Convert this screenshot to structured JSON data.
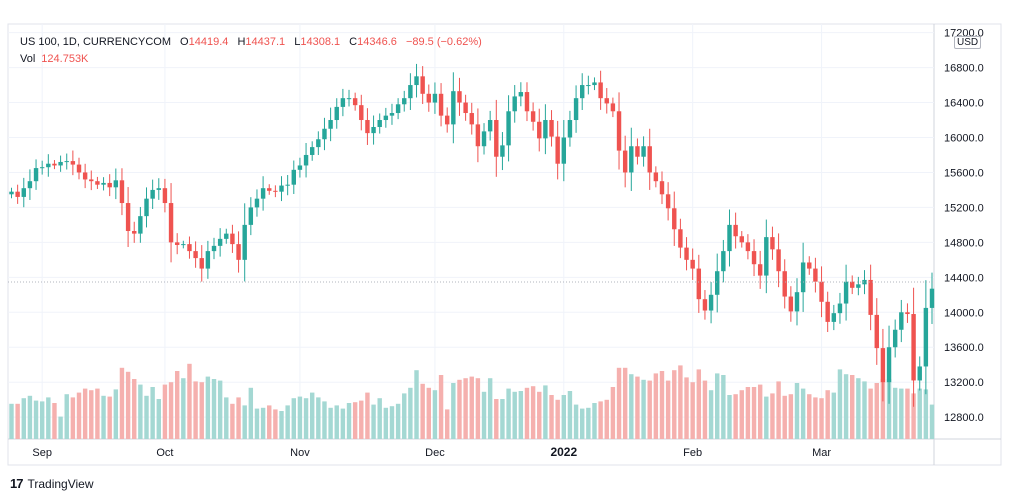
{
  "legend": {
    "symbol": "US 100, 1D, CURRENCYCOM",
    "o_label": "O",
    "open": "14419.4",
    "h_label": "H",
    "high": "14437.1",
    "l_label": "L",
    "low": "14308.1",
    "c_label": "C",
    "close": "14346.6",
    "change": "−89.5 (−0.62%)",
    "vol_label": "Vol",
    "vol_value": "124.753K"
  },
  "currency": "USD",
  "brand": {
    "name": "TradingView",
    "logo": "17"
  },
  "colors": {
    "up": "#26a69a",
    "down": "#ef5350",
    "vol_up": "#a4d8d3",
    "vol_down": "#f5b0ae"
  },
  "chart_data": {
    "type": "candlestick",
    "y_ticks": [
      "17200.0",
      "16800.0",
      "16400.0",
      "16000.0",
      "15600.0",
      "15200.0",
      "14800.0",
      "14400.0",
      "14000.0",
      "13600.0",
      "13200.0",
      "12800.0"
    ],
    "x_ticks": [
      "Sep",
      "Oct",
      "Nov",
      "Dec",
      "2022",
      "Feb",
      "Mar"
    ],
    "ylim": [
      12550,
      17230
    ],
    "last_close": 14346.6,
    "closes": [
      15380,
      15320,
      15420,
      15500,
      15650,
      15660,
      15700,
      15680,
      15720,
      15730,
      15690,
      15600,
      15520,
      15500,
      15460,
      15480,
      15430,
      15510,
      15250,
      14930,
      14900,
      15100,
      15300,
      15400,
      15420,
      15250,
      14800,
      14770,
      14780,
      14700,
      14620,
      14500,
      14700,
      14760,
      14840,
      14900,
      14780,
      14600,
      15000,
      15200,
      15300,
      15420,
      15390,
      15380,
      15450,
      15460,
      15630,
      15680,
      15800,
      15890,
      15980,
      16100,
      16200,
      16350,
      16450,
      16450,
      16370,
      16200,
      16050,
      16120,
      16200,
      16250,
      16280,
      16380,
      16450,
      16600,
      16700,
      16500,
      16400,
      16500,
      16250,
      16150,
      16530,
      16400,
      16280,
      16150,
      15900,
      16070,
      16200,
      15780,
      15910,
      16300,
      16470,
      16520,
      16300,
      16180,
      15990,
      16200,
      16010,
      15700,
      16000,
      16200,
      16450,
      16600,
      16600,
      16630,
      16450,
      16390,
      16300,
      15850,
      15600,
      15900,
      15780,
      15900,
      15600,
      15500,
      15350,
      15190,
      14950,
      14740,
      14600,
      14500,
      14150,
      14020,
      14200,
      14470,
      14700,
      15000,
      14870,
      14800,
      14700,
      14550,
      14420,
      14860,
      14720,
      14470,
      14180,
      14010,
      14230,
      14570,
      14500,
      14350,
      14120,
      13890,
      13990,
      14100,
      14350,
      14280,
      14320,
      14370,
      13970,
      13590,
      13200,
      13600,
      13800,
      14000,
      13980,
      13220,
      13380,
      14050,
      14270
    ],
    "volumes": [
      0.44,
      0.44,
      0.51,
      0.54,
      0.48,
      0.47,
      0.52,
      0.45,
      0.28,
      0.56,
      0.52,
      0.58,
      0.63,
      0.61,
      0.63,
      0.54,
      0.53,
      0.62,
      0.89,
      0.84,
      0.75,
      0.68,
      0.54,
      0.65,
      0.5,
      0.68,
      0.71,
      0.85,
      0.76,
      0.94,
      0.72,
      0.71,
      0.78,
      0.75,
      0.73,
      0.52,
      0.44,
      0.52,
      0.42,
      0.64,
      0.38,
      0.39,
      0.42,
      0.37,
      0.35,
      0.42,
      0.51,
      0.53,
      0.51,
      0.58,
      0.52,
      0.47,
      0.39,
      0.42,
      0.38,
      0.45,
      0.46,
      0.48,
      0.58,
      0.43,
      0.51,
      0.39,
      0.41,
      0.44,
      0.57,
      0.64,
      0.86,
      0.69,
      0.64,
      0.61,
      0.8,
      0.37,
      0.7,
      0.74,
      0.76,
      0.78,
      0.76,
      0.59,
      0.76,
      0.5,
      0.5,
      0.63,
      0.59,
      0.6,
      0.64,
      0.66,
      0.59,
      0.67,
      0.55,
      0.49,
      0.55,
      0.6,
      0.43,
      0.38,
      0.39,
      0.45,
      0.47,
      0.49,
      0.65,
      0.89,
      0.89,
      0.81,
      0.78,
      0.74,
      0.73,
      0.82,
      0.85,
      0.73,
      0.86,
      0.92,
      0.77,
      0.71,
      0.87,
      0.73,
      0.61,
      0.82,
      0.8,
      0.55,
      0.56,
      0.61,
      0.65,
      0.65,
      0.68,
      0.53,
      0.57,
      0.72,
      0.54,
      0.56,
      0.7,
      0.63,
      0.56,
      0.52,
      0.51,
      0.61,
      0.58,
      0.87,
      0.81,
      0.8,
      0.76,
      0.72,
      0.63,
      0.7,
      0.75,
      0.75,
      0.64,
      0.63,
      0.63,
      0.57,
      0.63,
      0.62,
      0.43
    ]
  }
}
